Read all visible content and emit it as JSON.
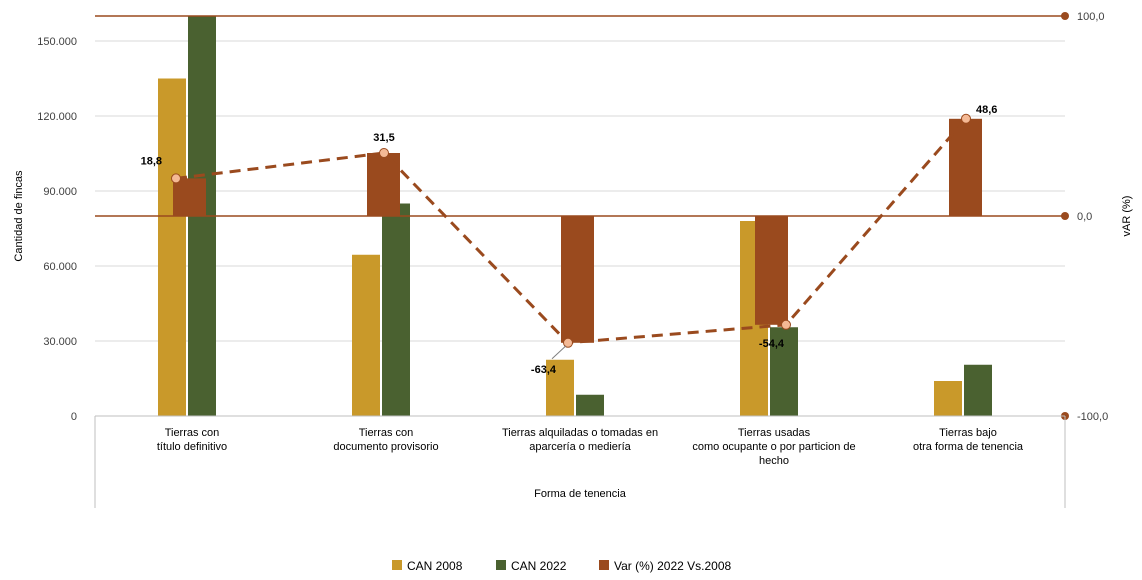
{
  "chart_data": {
    "type": "bar",
    "categories": [
      [
        "Tierras con",
        "título definitivo"
      ],
      [
        "Tierras con",
        "documento provisorio"
      ],
      [
        "Tierras alquiladas  o tomadas en",
        "aparcería o mediería"
      ],
      [
        "Tierras usadas",
        "como ocupante o por particion de",
        "hecho"
      ],
      [
        "Tierras bajo",
        "otra forma de tenencia"
      ]
    ],
    "xlabel": "Forma de tenencia",
    "ylabel": "Cantidad de fincas",
    "y2label": "vAR (%)",
    "ylim": [
      0,
      160000
    ],
    "yticks": [
      0,
      30000,
      60000,
      90000,
      120000,
      150000
    ],
    "ytick_labels": [
      "0",
      "30.000",
      "60.000",
      "90.000",
      "120.000",
      "150.000"
    ],
    "y2lim": [
      -100,
      100
    ],
    "y2ticks": [
      -100,
      0,
      100
    ],
    "y2tick_labels": [
      "-100,0",
      "0,0",
      "100,0"
    ],
    "grid": true,
    "legend_position": "bottom",
    "series": [
      {
        "name": "CAN 2008",
        "axis": "left",
        "kind": "bar",
        "color": "#C9992A",
        "values": [
          135000,
          64500,
          22500,
          78000,
          14000
        ]
      },
      {
        "name": "CAN 2022",
        "axis": "left",
        "kind": "bar",
        "color": "#4A6130",
        "values": [
          160000,
          85000,
          8500,
          35500,
          20500
        ]
      },
      {
        "name": "Var  (%) 2022 Vs.2008",
        "axis": "right",
        "kind": "bar+line",
        "color": "#9A4A1E",
        "values": [
          18.8,
          31.5,
          -63.4,
          -54.4,
          48.6
        ],
        "data_labels": [
          "18,8",
          "31,5",
          "-63,4",
          "-54,4",
          "48,6"
        ]
      }
    ]
  }
}
